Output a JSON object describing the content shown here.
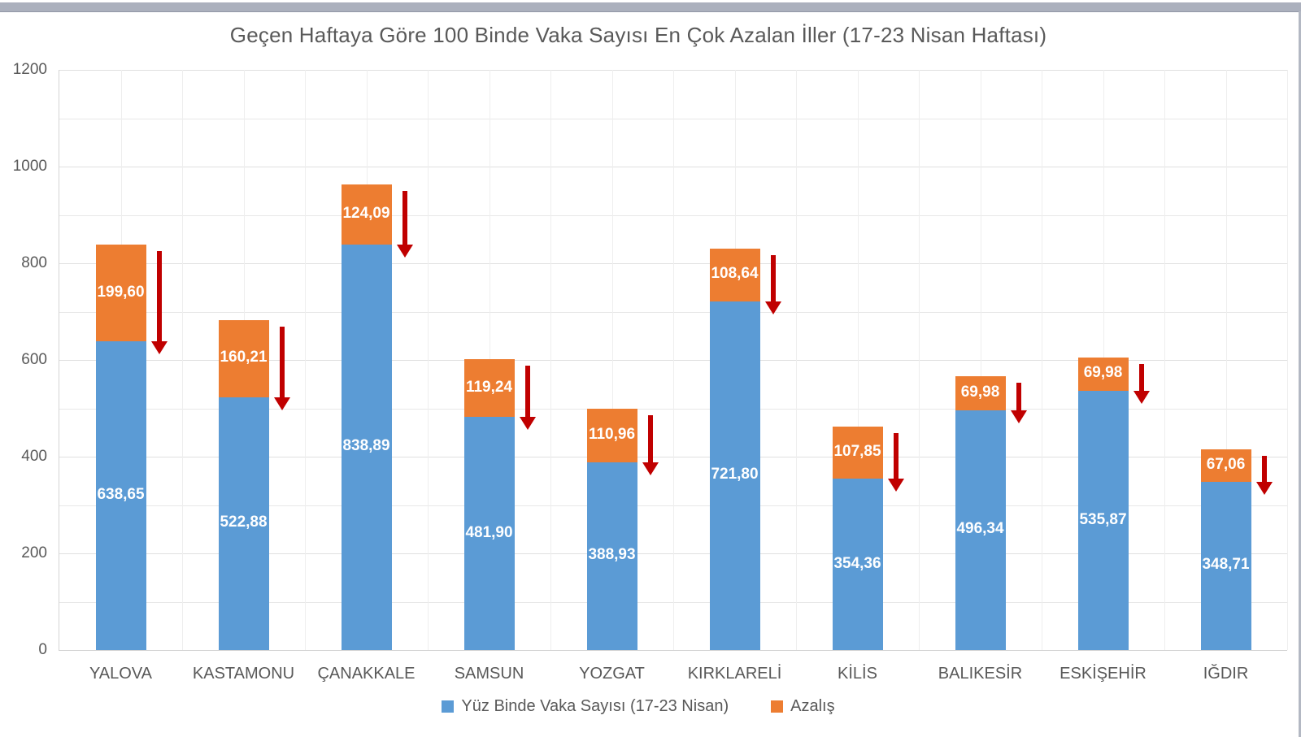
{
  "window": {
    "top_strip_color": "#abb0bd",
    "right_edge_color": "#b3b8c3"
  },
  "chart_data": {
    "type": "bar",
    "stacked": true,
    "title": "Geçen Haftaya Göre 100 Binde Vaka Sayısı En Çok Azalan İller (17-23 Nisan Haftası)",
    "categories": [
      "YALOVA",
      "KASTAMONU",
      "ÇANAKKALE",
      "SAMSUN",
      "YOZGAT",
      "KIRKLARELİ",
      "KİLİS",
      "BALIKESİR",
      "ESKİŞEHİR",
      "IĞDIR"
    ],
    "series": [
      {
        "name": "Yüz Binde Vaka Sayısı (17-23 Nisan)",
        "color": "#5b9bd5",
        "values": [
          638.65,
          522.88,
          838.89,
          481.9,
          388.93,
          721.8,
          354.36,
          496.34,
          535.87,
          348.71
        ],
        "labels": [
          "638,65",
          "522,88",
          "838,89",
          "481,90",
          "388,93",
          "721,80",
          "354,36",
          "496,34",
          "535,87",
          "348,71"
        ]
      },
      {
        "name": "Azalış",
        "color": "#ed7d31",
        "values": [
          199.6,
          160.21,
          124.09,
          119.24,
          110.96,
          108.64,
          107.85,
          69.98,
          69.98,
          67.06
        ],
        "labels": [
          "199,60",
          "160,21",
          "124,09",
          "119,24",
          "110,96",
          "108,64",
          "107,85",
          "69,98",
          "69,98",
          "67,06"
        ]
      }
    ],
    "decrease_arrows": {
      "shown": true,
      "color": "#c00000"
    },
    "ylim": [
      0,
      1200
    ],
    "yticks": [
      0,
      200,
      400,
      600,
      800,
      1000,
      1200
    ],
    "grid": true,
    "legend_position": "bottom",
    "axis_text_color": "#595959",
    "bar_label_color": "#ffffff"
  }
}
